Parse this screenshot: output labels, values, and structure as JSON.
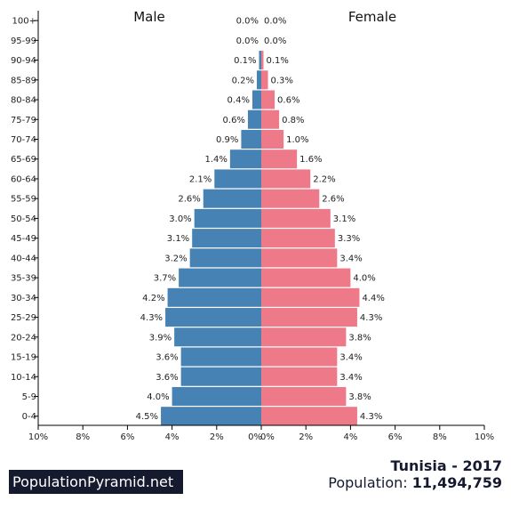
{
  "chart_data": {
    "type": "bar",
    "orientation": "horizontal",
    "categories": [
      "100+",
      "95-99",
      "90-94",
      "85-89",
      "80-84",
      "75-79",
      "70-74",
      "65-69",
      "60-64",
      "55-59",
      "50-54",
      "45-49",
      "40-44",
      "35-39",
      "30-34",
      "25-29",
      "20-24",
      "15-19",
      "10-14",
      "5-9",
      "0-4"
    ],
    "series": [
      {
        "name": "Male",
        "color": "#4682b4",
        "values": [
          0.0,
          0.0,
          0.1,
          0.2,
          0.4,
          0.6,
          0.9,
          1.4,
          2.1,
          2.6,
          3.0,
          3.1,
          3.2,
          3.7,
          4.2,
          4.3,
          3.9,
          3.6,
          3.6,
          4.0,
          4.5
        ],
        "labels": [
          "0.0%",
          "0.0%",
          "0.1%",
          "0.2%",
          "0.4%",
          "0.6%",
          "0.9%",
          "1.4%",
          "2.1%",
          "2.6%",
          "3.0%",
          "3.1%",
          "3.2%",
          "3.7%",
          "4.2%",
          "4.3%",
          "3.9%",
          "3.6%",
          "3.6%",
          "4.0%",
          "4.5%"
        ]
      },
      {
        "name": "Female",
        "color": "#ee7989",
        "values": [
          0.0,
          0.0,
          0.1,
          0.3,
          0.6,
          0.8,
          1.0,
          1.6,
          2.2,
          2.6,
          3.1,
          3.3,
          3.4,
          4.0,
          4.4,
          4.3,
          3.8,
          3.4,
          3.4,
          3.8,
          4.3
        ],
        "labels": [
          "0.0%",
          "0.0%",
          "0.1%",
          "0.3%",
          "0.6%",
          "0.8%",
          "1.0%",
          "1.6%",
          "2.2%",
          "2.6%",
          "3.1%",
          "3.3%",
          "3.4%",
          "4.0%",
          "4.4%",
          "4.3%",
          "3.8%",
          "3.4%",
          "3.4%",
          "3.8%",
          "4.3%"
        ]
      }
    ],
    "xlim": [
      -10,
      10
    ],
    "x_ticks": [
      "10%",
      "8%",
      "6%",
      "4%",
      "2%",
      "0%",
      "0%",
      "2%",
      "4%",
      "6%",
      "8%",
      "10%"
    ],
    "grid": false
  },
  "branding": {
    "site": "PopulationPyramid.net"
  },
  "summary": {
    "country_year": "Tunisia - 2017",
    "population_label": "Population:",
    "population_value": "11,494,759"
  }
}
